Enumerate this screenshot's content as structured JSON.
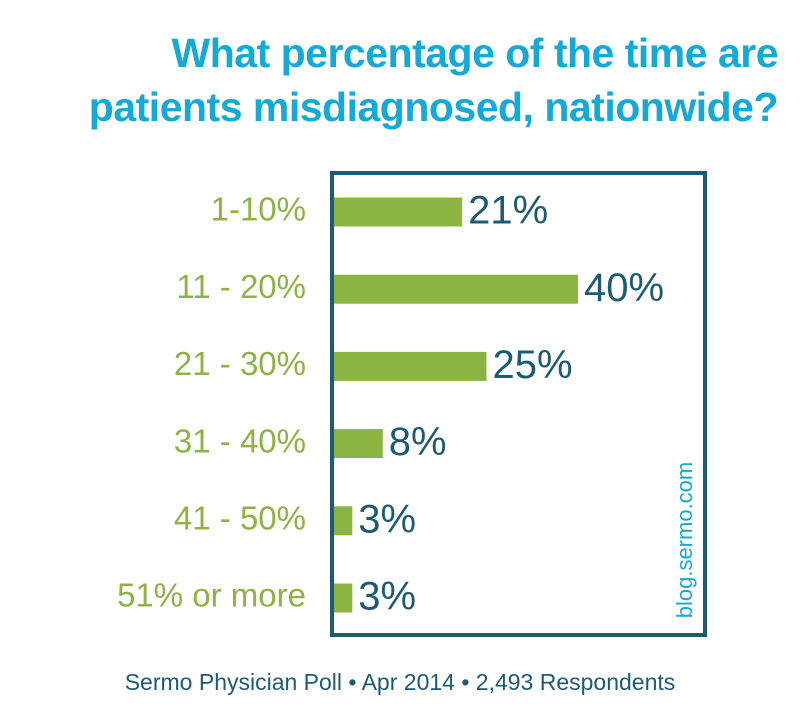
{
  "chart_data": {
    "type": "barh",
    "title": "What percentage of the time are patients misdiagnosed, nationwide?",
    "categories": [
      "1-10%",
      "11 - 20%",
      "21 - 30%",
      "31 - 40%",
      "41 - 50%",
      "51% or more"
    ],
    "values": [
      21,
      40,
      25,
      8,
      3,
      3
    ],
    "value_labels": [
      "21%",
      "40%",
      "25%",
      "8%",
      "3%",
      "3%"
    ],
    "color": "#8cb443",
    "watermark": "blog.sermo.com",
    "source": "Sermo Physician Poll • Apr 2014 • 2,493 Respondents"
  }
}
